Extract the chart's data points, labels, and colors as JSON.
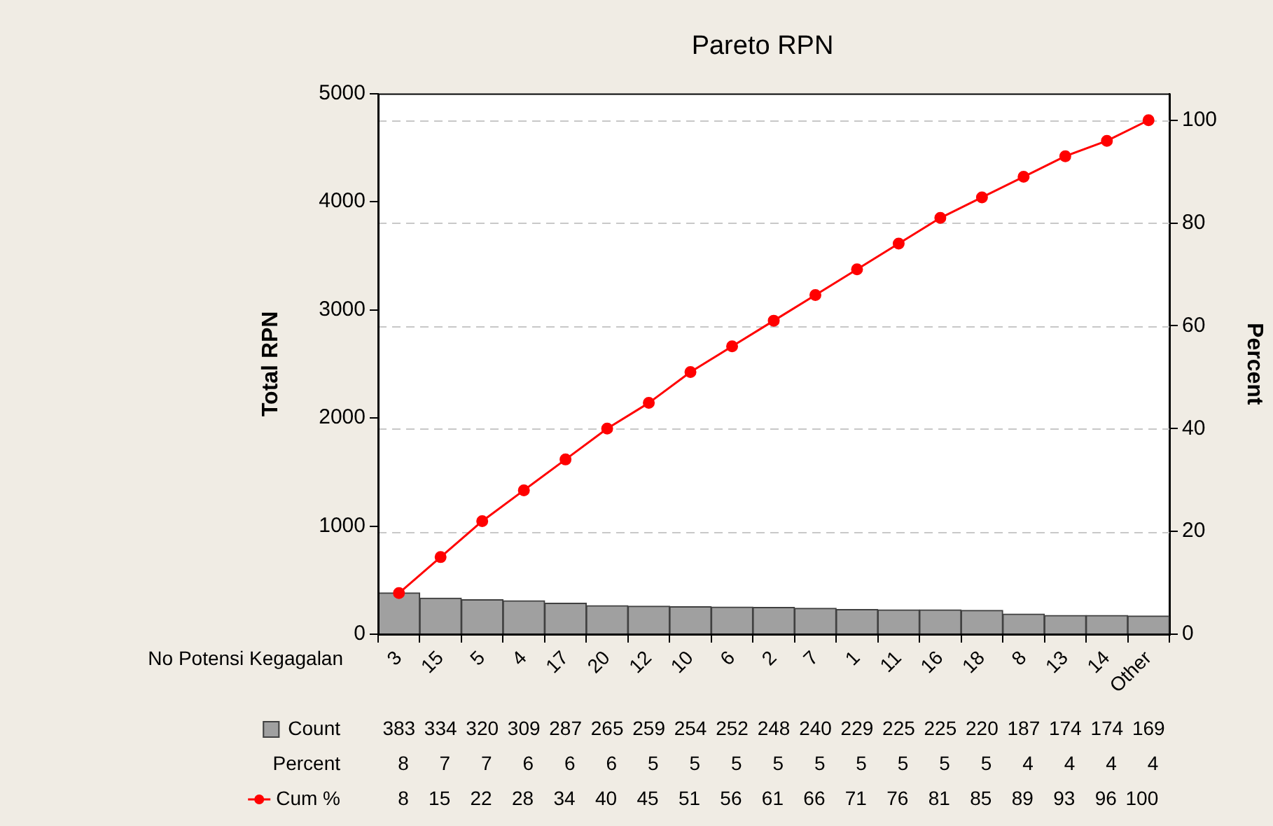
{
  "chart_data": {
    "type": "bar",
    "title": "Pareto RPN",
    "xlabel": "No Potensi Kegagalan",
    "ylabel": "Total RPN",
    "y2label": "Percent",
    "categories": [
      "3",
      "15",
      "5",
      "4",
      "17",
      "20",
      "12",
      "10",
      "6",
      "2",
      "7",
      "1",
      "11",
      "16",
      "18",
      "8",
      "13",
      "14",
      "Other"
    ],
    "series": [
      {
        "name": "Count",
        "color": "#a0a0a0",
        "values": [
          383,
          334,
          320,
          309,
          287,
          265,
          259,
          254,
          252,
          248,
          240,
          229,
          225,
          225,
          220,
          187,
          174,
          174,
          169
        ]
      },
      {
        "name": "Cum %",
        "type": "line",
        "axis": "y2",
        "color": "#ff0000",
        "values": [
          8,
          15,
          22,
          28,
          34,
          40,
          45,
          51,
          56,
          61,
          66,
          71,
          76,
          81,
          85,
          89,
          93,
          96,
          100
        ]
      }
    ],
    "annotations": [
      "Percent",
      "8",
      "7",
      "7",
      "6",
      "6",
      "6",
      "5",
      "5",
      "5",
      "5",
      "5",
      "5",
      "5",
      "5",
      "5",
      "4",
      "4",
      "4",
      "4"
    ],
    "ylim": [
      0,
      5000
    ],
    "yticks": [
      0,
      1000,
      2000,
      3000,
      4000,
      5000
    ],
    "y2lim": [
      0,
      105.2
    ],
    "y2ticks": [
      0,
      20,
      40,
      60,
      80,
      100
    ],
    "grid": true,
    "marker": "circle",
    "data_labels": true,
    "legend": "bottom left"
  }
}
